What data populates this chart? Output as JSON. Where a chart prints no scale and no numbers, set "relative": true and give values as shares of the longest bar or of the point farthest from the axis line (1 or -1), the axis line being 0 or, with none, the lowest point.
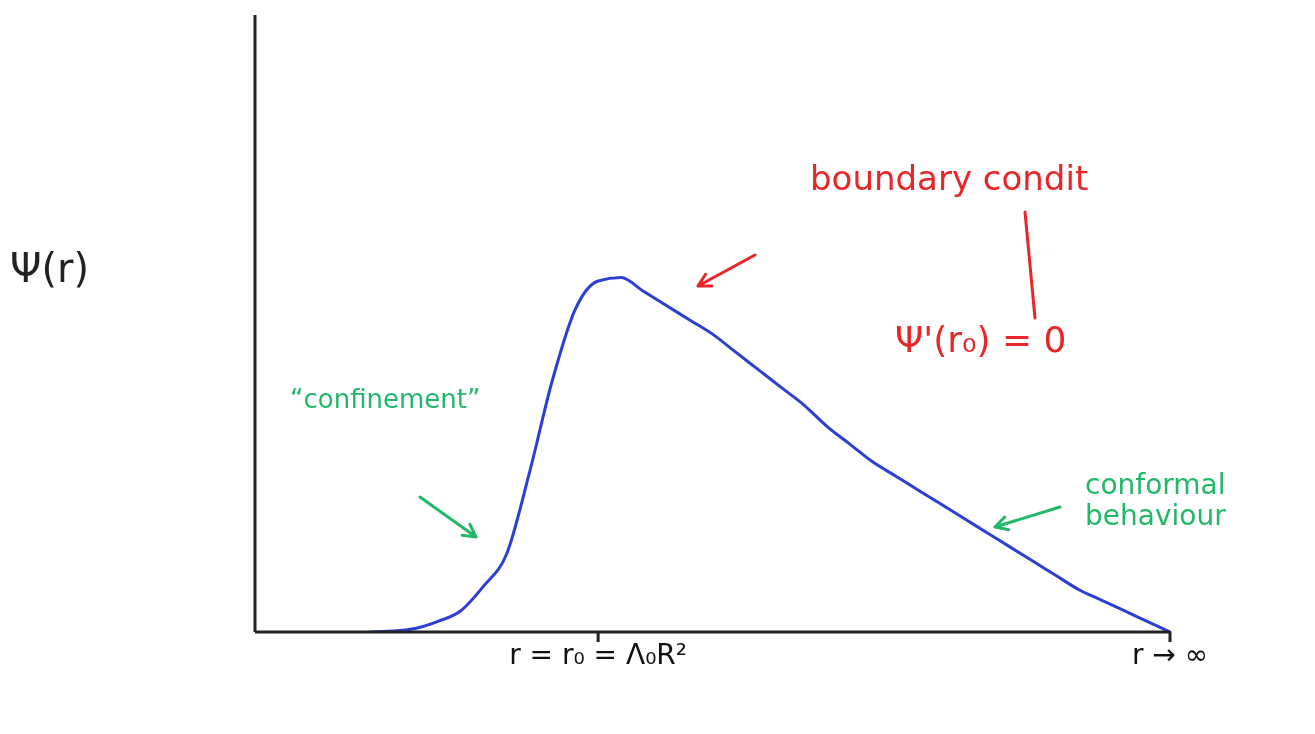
{
  "chart_data": {
    "type": "line",
    "relative": true,
    "ylabel": "Ψ(r)",
    "categories": [
      null,
      null,
      null,
      null,
      null,
      null,
      null,
      null,
      null,
      null,
      null,
      null,
      null,
      null,
      null,
      "r = r₀ = Λ₀R²",
      null,
      null,
      null,
      null,
      null,
      null,
      null,
      null,
      null,
      null,
      null,
      null,
      null,
      null,
      null,
      null,
      null,
      null,
      null,
      null,
      null,
      null,
      null,
      null,
      "r → ∞"
    ],
    "series": [
      {
        "color": "#2b3fd4",
        "values": [
          null,
          null,
          null,
          null,
          null,
          0,
          0.003,
          0.01,
          0.03,
          0.06,
          0.13,
          0.22,
          0.45,
          0.71,
          0.91,
          0.99,
          1,
          0.96,
          0.92,
          0.88,
          0.84,
          0.79,
          0.74,
          0.69,
          0.64,
          0.58,
          0.53,
          0.48,
          0.44,
          0.4,
          0.36,
          0.32,
          0.28,
          0.24,
          0.2,
          0.16,
          0.12,
          0.09,
          0.06,
          0.03,
          0
        ]
      }
    ],
    "annotations": [
      "boundary condit",
      "Ψ'(r₀) = 0",
      "“confinement”",
      "conformal behaviour"
    ],
    "marker": "none",
    "line_style": "solid",
    "legend": false,
    "grid": false
  }
}
